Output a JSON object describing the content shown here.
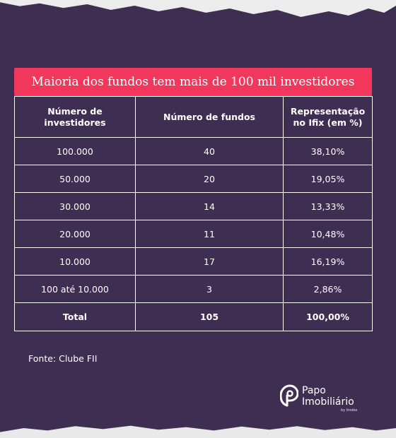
{
  "title": "Maioria dos fundos tem mais de 100 mil investidores",
  "table": {
    "headers": [
      "Número de\ninvestidores",
      "Número de fundos",
      "Representação\nno Ifix (em %)"
    ],
    "rows": [
      [
        "100.000",
        "40",
        "38,10%"
      ],
      [
        "50.000",
        "20",
        "19,05%"
      ],
      [
        "30.000",
        "14",
        "13,33%"
      ],
      [
        "20.000",
        "11",
        "10,48%"
      ],
      [
        "10.000",
        "17",
        "16,19%"
      ],
      [
        "100 até 10.000",
        "3",
        "2,86%"
      ]
    ],
    "total": [
      "Total",
      "105",
      "100,00%"
    ]
  },
  "source": "Fonte:  Clube FII",
  "logo": {
    "line1": "Papo",
    "line2": "Imobiliário",
    "sub": "by Imobe"
  },
  "colors": {
    "background": "#3e2e52",
    "title_bar": "#f1385c",
    "text": "#ffffff"
  }
}
